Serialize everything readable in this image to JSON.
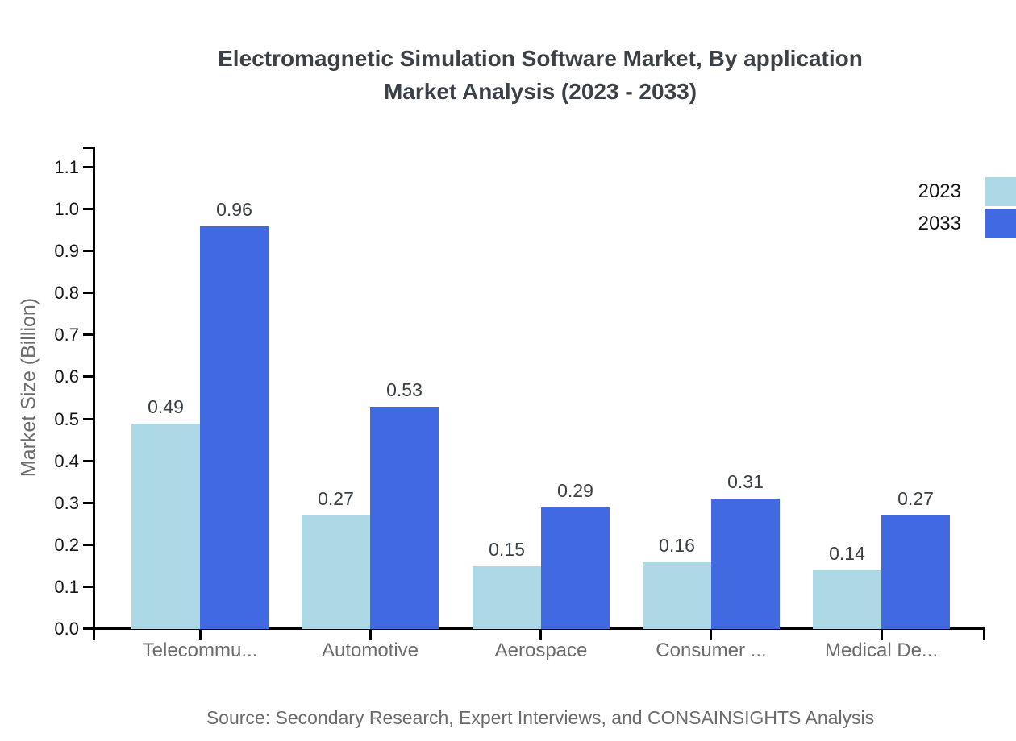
{
  "header": {
    "title_line1": "Electromagnetic Simulation Software Market, By application",
    "title_line2": "Market Analysis (2023 - 2033)"
  },
  "chart_data": {
    "type": "bar",
    "title": "Electromagnetic Simulation Software Market, By application Market Analysis (2023 - 2033)",
    "categories": [
      "Telecommu...",
      "Automotive",
      "Aerospace",
      "Consumer ...",
      "Medical De..."
    ],
    "series": [
      {
        "name": "2023",
        "color": "#ADD8E6",
        "values": [
          0.49,
          0.27,
          0.15,
          0.16,
          0.14
        ]
      },
      {
        "name": "2033",
        "color": "#4169E1",
        "values": [
          0.96,
          0.53,
          0.29,
          0.31,
          0.27
        ]
      }
    ],
    "xlabel": "",
    "ylabel": "Market Size (Billion)",
    "ylim": [
      0,
      1.15
    ],
    "yticks": [
      0.0,
      0.1,
      0.2,
      0.3,
      0.4,
      0.5,
      0.6,
      0.7,
      0.8,
      0.9,
      1.0,
      1.1
    ],
    "grid": false,
    "legend_position": "top-right",
    "value_labels": true
  },
  "footer": {
    "source": "Source: Secondary Research, Expert Interviews, and CONSAINSIGHTS Analysis"
  },
  "colors": {
    "axis": "#000000",
    "title_text": "#3c4148",
    "y_tick_label": "#141414",
    "category_label": "#6b6b6b",
    "value_label": "#3a3f44",
    "legend_label": "#141414",
    "source_text": "#6b6b6b"
  }
}
